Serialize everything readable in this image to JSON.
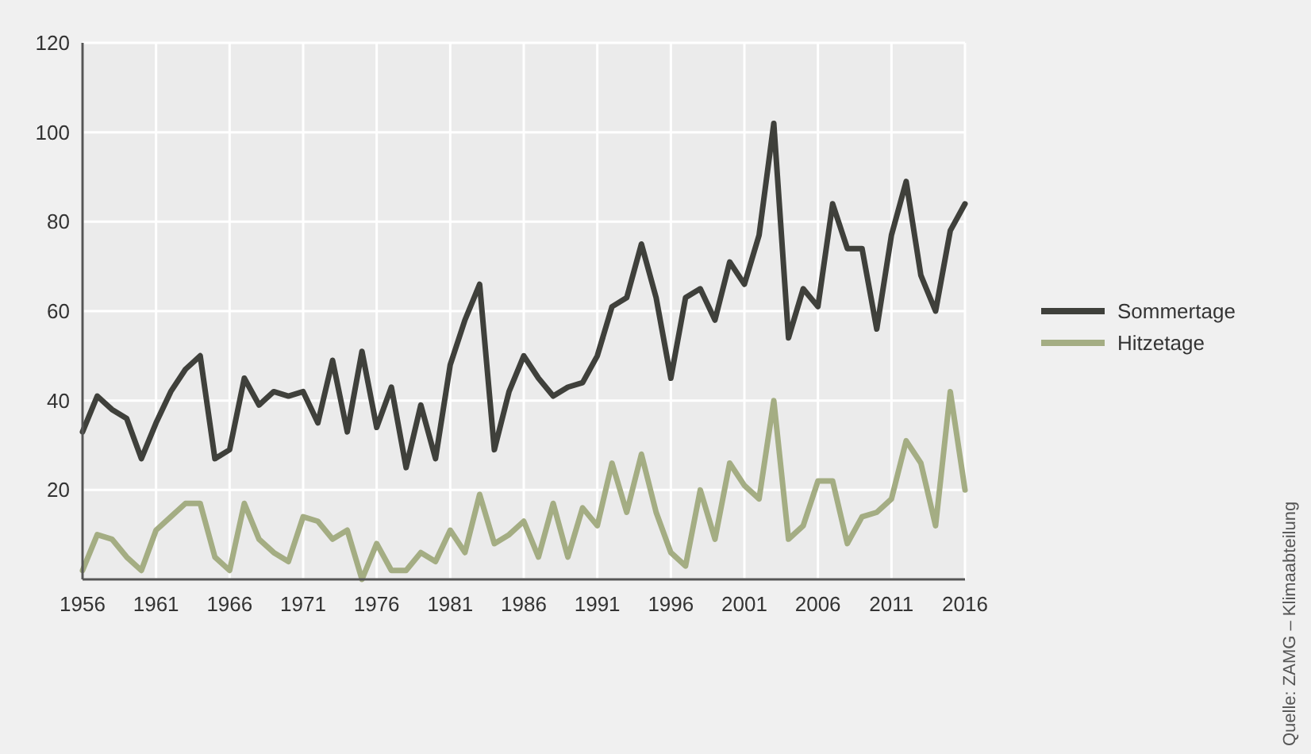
{
  "chart_data": {
    "type": "line",
    "x": [
      1956,
      1957,
      1958,
      1959,
      1960,
      1961,
      1962,
      1963,
      1964,
      1965,
      1966,
      1967,
      1968,
      1969,
      1970,
      1971,
      1972,
      1973,
      1974,
      1975,
      1976,
      1977,
      1978,
      1979,
      1980,
      1981,
      1982,
      1983,
      1984,
      1985,
      1986,
      1987,
      1988,
      1989,
      1990,
      1991,
      1992,
      1993,
      1994,
      1995,
      1996,
      1997,
      1998,
      1999,
      2000,
      2001,
      2002,
      2003,
      2004,
      2005,
      2006,
      2007,
      2008,
      2009,
      2010,
      2011,
      2012,
      2013,
      2014,
      2015,
      2016
    ],
    "series": [
      {
        "name": "Sommertage",
        "color": "#3f403b",
        "values": [
          33,
          41,
          38,
          36,
          27,
          35,
          42,
          47,
          50,
          27,
          29,
          45,
          39,
          42,
          41,
          42,
          35,
          49,
          33,
          51,
          34,
          43,
          25,
          39,
          27,
          48,
          58,
          66,
          29,
          42,
          50,
          45,
          41,
          43,
          44,
          50,
          61,
          63,
          75,
          63,
          45,
          63,
          65,
          58,
          71,
          66,
          77,
          102,
          54,
          65,
          61,
          84,
          74,
          74,
          56,
          77,
          89,
          68,
          60,
          78,
          84
        ]
      },
      {
        "name": "Hitzetage",
        "color": "#a4ad83",
        "values": [
          2,
          10,
          9,
          5,
          2,
          11,
          14,
          17,
          17,
          5,
          2,
          17,
          9,
          6,
          4,
          14,
          13,
          9,
          11,
          0,
          8,
          2,
          2,
          6,
          4,
          11,
          6,
          19,
          8,
          10,
          13,
          5,
          17,
          5,
          16,
          12,
          26,
          15,
          28,
          15,
          6,
          3,
          20,
          9,
          26,
          21,
          18,
          40,
          9,
          12,
          22,
          22,
          8,
          14,
          15,
          18,
          31,
          26,
          12,
          42,
          20
        ]
      }
    ],
    "xlim": [
      1956,
      2016
    ],
    "xticks": [
      1956,
      1961,
      1966,
      1971,
      1976,
      1981,
      1986,
      1991,
      1996,
      2001,
      2006,
      2011,
      2016
    ],
    "ylim": [
      0,
      120
    ],
    "yticks": [
      {
        "value": 0,
        "label": null
      },
      20,
      40,
      60,
      80,
      100,
      120
    ],
    "grid": true,
    "legend": "right",
    "marker": "none",
    "line_style": "solid",
    "annotations": [
      "Quelle: ZAMG – Klimaabteilung"
    ]
  }
}
